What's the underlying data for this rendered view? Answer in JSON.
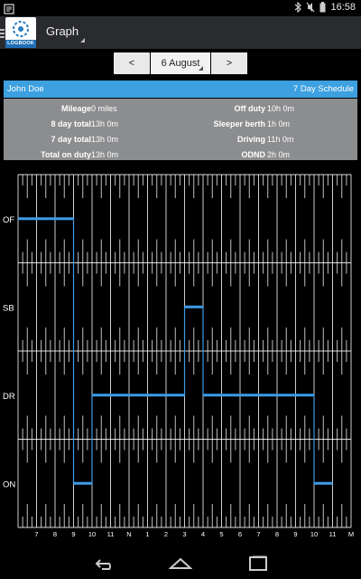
{
  "status_bar": {
    "time": "16:58",
    "icons": [
      "notification-icon",
      "bluetooth-icon",
      "mute-icon",
      "battery-icon"
    ]
  },
  "action_bar": {
    "title": "Graph",
    "logo_text": "LOGBOOK"
  },
  "date_nav": {
    "prev_label": "<",
    "date": "6 August",
    "next_label": ">"
  },
  "driver": {
    "name": "John Doe",
    "schedule": "7 Day Schedule"
  },
  "summary": {
    "left": [
      {
        "label": "Mileage",
        "value": "0 miles"
      },
      {
        "label": "8 day total",
        "value": "13h 0m"
      },
      {
        "label": "7 day total",
        "value": "13h 0m"
      },
      {
        "label": "Total on duty",
        "value": "13h 0m"
      }
    ],
    "right": [
      {
        "label": "Off duty",
        "value": "10h 0m"
      },
      {
        "label": "Sleeper berth",
        "value": "1h 0m"
      },
      {
        "label": "Driving",
        "value": "11h 0m"
      },
      {
        "label": "ODND",
        "value": "2h 0m"
      }
    ]
  },
  "chart_data": {
    "type": "line",
    "rows": [
      "OF",
      "SB",
      "DR",
      "ON"
    ],
    "hour_labels": [
      "7",
      "8",
      "9",
      "10",
      "11",
      "N",
      "1",
      "2",
      "3",
      "4",
      "5",
      "6",
      "7",
      "8",
      "9",
      "10",
      "11",
      "M"
    ],
    "start_hour": 6,
    "end_hour": 24,
    "segments": [
      {
        "status": "OF",
        "start": 6,
        "end": 9
      },
      {
        "status": "ON",
        "start": 9,
        "end": 10
      },
      {
        "status": "DR",
        "start": 10,
        "end": 15
      },
      {
        "status": "SB",
        "start": 15,
        "end": 16
      },
      {
        "status": "DR",
        "start": 16,
        "end": 22
      },
      {
        "status": "ON",
        "start": 22,
        "end": 23
      }
    ],
    "line_color": "#3d9be6",
    "grid_color": "#ffffff",
    "background": "#000000"
  },
  "nav_bar": {
    "icons": [
      "back-icon",
      "home-icon",
      "recent-apps-icon"
    ]
  }
}
